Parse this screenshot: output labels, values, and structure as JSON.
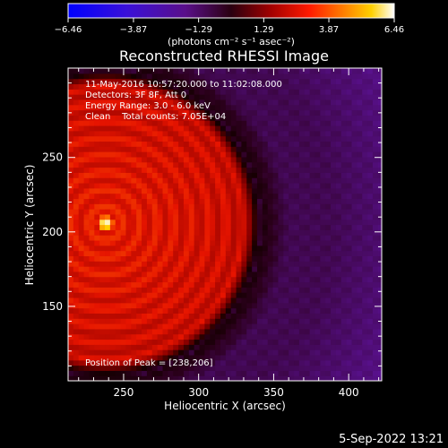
{
  "chart_data": {
    "type": "heatmap",
    "title": "Reconstructed RHESSI Image",
    "xlabel": "Heliocentric X (arcsec)",
    "ylabel": "Heliocentric Y (arcsec)",
    "xlim": [
      213,
      422
    ],
    "ylim": [
      100,
      310
    ],
    "x_ticks": [
      "250",
      "300",
      "350",
      "400"
    ],
    "x_tick_values": [
      250,
      300,
      350,
      400
    ],
    "y_ticks": [
      "150",
      "200",
      "250"
    ],
    "y_tick_values": [
      150,
      200,
      250
    ],
    "colorbar": {
      "label": "(photons cm⁻² s⁻¹ asec⁻²)",
      "tick_labels": [
        "−6.46",
        "−3.87",
        "−1.29",
        "1.29",
        "3.87",
        "6.46"
      ],
      "tick_values": [
        -6.46,
        -3.87,
        -1.29,
        1.29,
        3.87,
        6.46
      ],
      "range": [
        -6.46,
        6.46
      ]
    },
    "annotations": [
      "11-May-2016 10:57:20.000 to 11:02:08.000",
      "Detectors: 3F 8F, Att 0",
      "Energy Range: 3.0 - 6.0 keV",
      "Clean    Total counts: 7.05E+04"
    ],
    "peak_label": "Position of Peak = [238,206]",
    "peak": {
      "x": 238,
      "y": 206,
      "value": 6.46
    },
    "background_value": -1.2,
    "ring_spacing_arcsec": 11.5,
    "falloff_radius_arcsec": 100,
    "colors": {
      "background": "#000000",
      "text": "#ffffff"
    }
  },
  "footer": {
    "timestamp": "5-Sep-2022 13:21"
  }
}
